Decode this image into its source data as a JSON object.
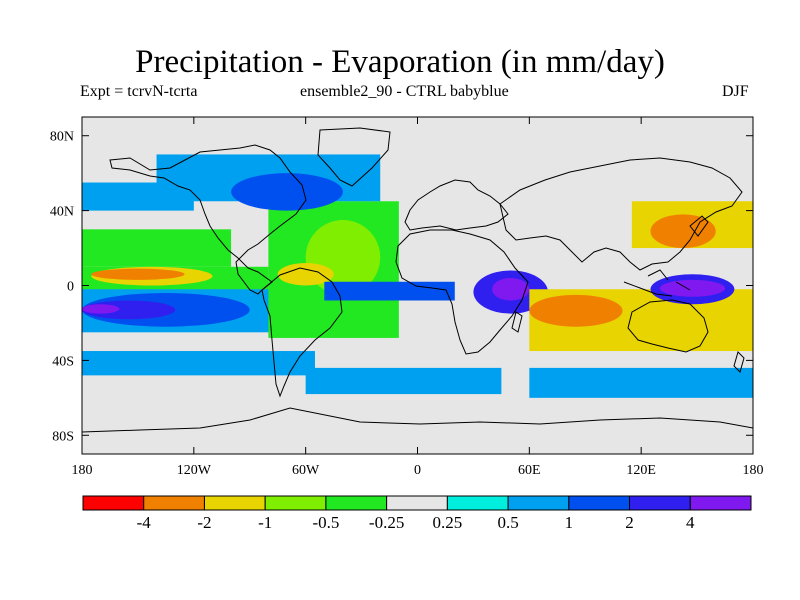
{
  "title": "Precipitation - Evaporation (in mm/day)",
  "subtitle_left": "Expt = tcrvN-tcrta",
  "subtitle_mid": "ensemble2_90 - CTRL babyblue",
  "season": "DJF",
  "map": {
    "lat_ticks": [
      "80N",
      "40N",
      "0",
      "40S",
      "80S"
    ],
    "lon_ticks": [
      "180",
      "120W",
      "60W",
      "0",
      "60E",
      "120E",
      "180"
    ],
    "background_color": "#e6e6e6",
    "coast_color": "#000000"
  },
  "colorbar": {
    "colors": [
      "#ff0000",
      "#f08000",
      "#e8d400",
      "#80ee00",
      "#22e822",
      "#e6e6e6",
      "#00eedd",
      "#00a0f0",
      "#0050f0",
      "#3020f0",
      "#8018f0"
    ],
    "labels": [
      "-4",
      "-2",
      "-1",
      "-0.5",
      "-0.25",
      "0.25",
      "0.5",
      "1",
      "2",
      "4"
    ]
  },
  "chart_data": {
    "type": "heatmap",
    "title": "Precipitation - Evaporation (in mm/day)",
    "variable": "P - E difference (ensemble2_90 - CTRL babyblue)",
    "units": "mm/day",
    "season": "DJF",
    "x_range_lon": [
      -180,
      180
    ],
    "y_range_lat": [
      -90,
      90
    ],
    "contour_levels": [
      -4,
      -2,
      -1,
      -0.5,
      -0.25,
      0.25,
      0.5,
      1,
      2,
      4
    ],
    "regions": [
      {
        "lon": [
          -180,
          180
        ],
        "lat": [
          -90,
          90
        ],
        "value": 0,
        "shape": "rect"
      },
      {
        "lon": [
          -180,
          -55
        ],
        "lat": [
          -48,
          -35
        ],
        "value": 0.7,
        "shape": "rect"
      },
      {
        "lon": [
          -60,
          45
        ],
        "lat": [
          -58,
          -44
        ],
        "value": 0.7,
        "shape": "rect"
      },
      {
        "lon": [
          60,
          180
        ],
        "lat": [
          -60,
          -44
        ],
        "value": 0.7,
        "shape": "rect"
      },
      {
        "lon": [
          -180,
          -100
        ],
        "lat": [
          10,
          30
        ],
        "value": -0.3,
        "shape": "rect"
      },
      {
        "lon": [
          -180,
          -80
        ],
        "lat": [
          -5,
          10
        ],
        "value": -0.3,
        "shape": "rect"
      },
      {
        "lon": [
          -175,
          -110
        ],
        "lat": [
          0,
          10
        ],
        "value": -1.5,
        "shape": "ellipse"
      },
      {
        "lon": [
          -175,
          -125
        ],
        "lat": [
          3,
          9
        ],
        "value": -3,
        "shape": "ellipse"
      },
      {
        "lon": [
          -180,
          -60
        ],
        "lat": [
          -25,
          -2
        ],
        "value": 0.7,
        "shape": "rect"
      },
      {
        "lon": [
          -180,
          -90
        ],
        "lat": [
          -22,
          -4
        ],
        "value": 1.5,
        "shape": "ellipse"
      },
      {
        "lon": [
          -180,
          -130
        ],
        "lat": [
          -18,
          -8
        ],
        "value": 3,
        "shape": "ellipse"
      },
      {
        "lon": [
          -180,
          -160
        ],
        "lat": [
          -15,
          -10
        ],
        "value": 5,
        "shape": "ellipse"
      },
      {
        "lon": [
          -80,
          -10
        ],
        "lat": [
          -28,
          45
        ],
        "value": -0.3,
        "shape": "rect"
      },
      {
        "lon": [
          -60,
          -20
        ],
        "lat": [
          -5,
          35
        ],
        "value": -0.7,
        "shape": "ellipse"
      },
      {
        "lon": [
          -75,
          -45
        ],
        "lat": [
          0,
          12
        ],
        "value": -1.5,
        "shape": "ellipse"
      },
      {
        "lon": [
          -50,
          20
        ],
        "lat": [
          -8,
          2
        ],
        "value": 1.5,
        "shape": "rect"
      },
      {
        "lon": [
          30,
          70
        ],
        "lat": [
          -15,
          8
        ],
        "value": 2.5,
        "shape": "ellipse"
      },
      {
        "lon": [
          40,
          60
        ],
        "lat": [
          -8,
          4
        ],
        "value": 5,
        "shape": "ellipse"
      },
      {
        "lon": [
          60,
          180
        ],
        "lat": [
          -35,
          -2
        ],
        "value": -1,
        "shape": "rect"
      },
      {
        "lon": [
          60,
          110
        ],
        "lat": [
          -22,
          -5
        ],
        "value": -2.5,
        "shape": "ellipse"
      },
      {
        "lon": [
          125,
          170
        ],
        "lat": [
          -10,
          6
        ],
        "value": 2.5,
        "shape": "ellipse"
      },
      {
        "lon": [
          130,
          165
        ],
        "lat": [
          -6,
          3
        ],
        "value": 4.5,
        "shape": "ellipse"
      },
      {
        "lon": [
          115,
          180
        ],
        "lat": [
          20,
          45
        ],
        "value": -1,
        "shape": "rect"
      },
      {
        "lon": [
          125,
          160
        ],
        "lat": [
          20,
          38
        ],
        "value": -2.5,
        "shape": "ellipse"
      },
      {
        "lon": [
          -140,
          -20
        ],
        "lat": [
          45,
          70
        ],
        "value": 0.7,
        "shape": "rect"
      },
      {
        "lon": [
          -100,
          -40
        ],
        "lat": [
          40,
          60
        ],
        "value": 1.5,
        "shape": "ellipse"
      },
      {
        "lon": [
          -180,
          -120
        ],
        "lat": [
          40,
          55
        ],
        "value": 0.7,
        "shape": "rect"
      }
    ]
  }
}
